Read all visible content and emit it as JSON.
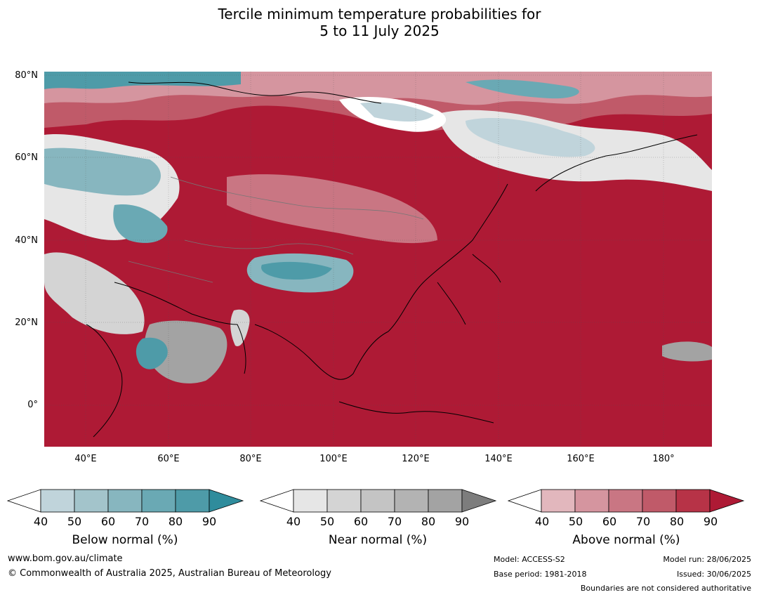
{
  "title_line1": "Tercile minimum temperature probabilities for",
  "title_line2": "5 to 11 July 2025",
  "lat_labels": [
    "80°N",
    "60°N",
    "40°N",
    "20°N",
    "0°"
  ],
  "lon_labels": [
    "40°E",
    "60°E",
    "80°E",
    "100°E",
    "120°E",
    "140°E",
    "160°E",
    "180°"
  ],
  "colorbars": [
    {
      "title": "Below normal (%)",
      "ticks": [
        "40",
        "50",
        "60",
        "70",
        "80",
        "90"
      ],
      "colors": [
        "#ffffff",
        "#c0d4db",
        "#a3c4cb",
        "#87b6bf",
        "#6aa9b4",
        "#4e9ba8",
        "#2f8c9c"
      ]
    },
    {
      "title": "Near normal (%)",
      "ticks": [
        "40",
        "50",
        "60",
        "70",
        "80",
        "90"
      ],
      "colors": [
        "#ffffff",
        "#e6e6e6",
        "#d4d4d4",
        "#c4c4c4",
        "#b3b3b3",
        "#a3a3a3",
        "#7d7d7d"
      ]
    },
    {
      "title": "Above normal (%)",
      "ticks": [
        "40",
        "50",
        "60",
        "70",
        "80",
        "90"
      ],
      "colors": [
        "#ffffff",
        "#e2b7bd",
        "#d5959f",
        "#c97683",
        "#c05a69",
        "#b73347",
        "#ae1a35"
      ]
    }
  ],
  "footer": {
    "website": "www.bom.gov.au/climate",
    "copyright": "© Commonwealth of Australia 2025, Australian Bureau of Meteorology",
    "model": "Model: ACCESS-S2",
    "base_period": "Base period: 1981-2018",
    "model_run": "Model run: 28/06/2025",
    "issued": "Issued: 30/06/2025",
    "boundaries_note": "Boundaries are not considered authoritative"
  }
}
